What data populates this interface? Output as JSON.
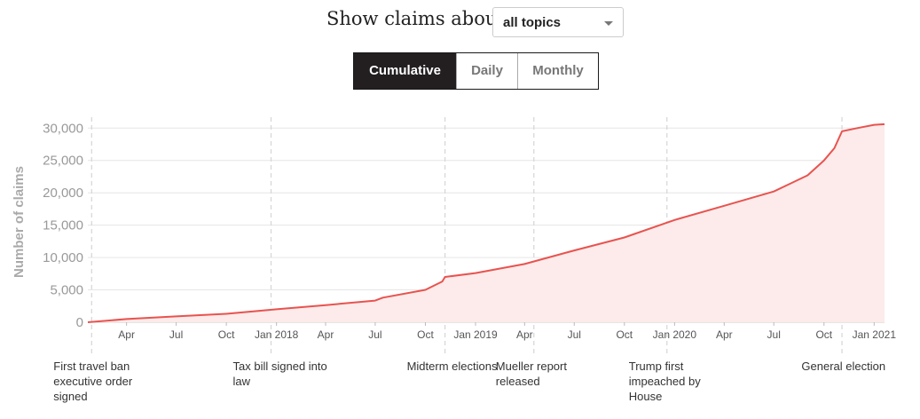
{
  "controls": {
    "prompt": "Show claims about",
    "topic_select": {
      "value": "all topics"
    },
    "view_toggle": [
      {
        "label": "Cumulative",
        "active": true
      },
      {
        "label": "Daily",
        "active": false
      },
      {
        "label": "Monthly",
        "active": false
      }
    ]
  },
  "events": [
    {
      "label": "First travel ban executive order signed",
      "date": "2017-01-27"
    },
    {
      "label": "Tax bill signed into law",
      "date": "2017-12-22"
    },
    {
      "label": "Midterm elections",
      "date": "2018-11-06"
    },
    {
      "label": "Mueller report released",
      "date": "2019-04-18"
    },
    {
      "label": "Trump first impeached by House",
      "date": "2019-12-18"
    },
    {
      "label": "General election",
      "date": "2020-11-03"
    }
  ],
  "chart_data": {
    "type": "area",
    "xlabel": "",
    "ylabel": "Number of claims",
    "x_range": [
      "2017-01-20",
      "2021-01-20"
    ],
    "ylim": [
      0,
      31000
    ],
    "y_ticks": [
      0,
      5000,
      10000,
      15000,
      20000,
      25000,
      30000
    ],
    "y_tick_labels": [
      "0",
      "5,000",
      "10,000",
      "15,000",
      "20,000",
      "25,000",
      "30,000"
    ],
    "x_ticks": [
      {
        "date": "2017-04-01",
        "label": "Apr"
      },
      {
        "date": "2017-07-01",
        "label": "Jul"
      },
      {
        "date": "2017-10-01",
        "label": "Oct"
      },
      {
        "date": "2018-01-01",
        "label": "Jan 2018"
      },
      {
        "date": "2018-04-01",
        "label": "Apr"
      },
      {
        "date": "2018-07-01",
        "label": "Jul"
      },
      {
        "date": "2018-10-01",
        "label": "Oct"
      },
      {
        "date": "2019-01-01",
        "label": "Jan 2019"
      },
      {
        "date": "2019-04-01",
        "label": "Apr"
      },
      {
        "date": "2019-07-01",
        "label": "Jul"
      },
      {
        "date": "2019-10-01",
        "label": "Oct"
      },
      {
        "date": "2020-01-01",
        "label": "Jan 2020"
      },
      {
        "date": "2020-04-01",
        "label": "Apr"
      },
      {
        "date": "2020-07-01",
        "label": "Jul"
      },
      {
        "date": "2020-10-01",
        "label": "Oct"
      },
      {
        "date": "2021-01-01",
        "label": "Jan 2021"
      }
    ],
    "series": [
      {
        "color": "#e8534f",
        "fill": "#fcebea",
        "points": [
          [
            "2017-01-20",
            0
          ],
          [
            "2017-04-01",
            500
          ],
          [
            "2017-07-01",
            900
          ],
          [
            "2017-10-01",
            1300
          ],
          [
            "2018-01-01",
            2000
          ],
          [
            "2018-04-01",
            2650
          ],
          [
            "2018-07-01",
            3350
          ],
          [
            "2018-07-15",
            3800
          ],
          [
            "2018-10-01",
            5000
          ],
          [
            "2018-11-01",
            6300
          ],
          [
            "2018-11-06",
            7000
          ],
          [
            "2019-01-01",
            7600
          ],
          [
            "2019-04-01",
            9000
          ],
          [
            "2019-07-01",
            11100
          ],
          [
            "2019-10-01",
            13100
          ],
          [
            "2020-01-01",
            15800
          ],
          [
            "2020-04-01",
            18000
          ],
          [
            "2020-07-01",
            20200
          ],
          [
            "2020-09-01",
            22700
          ],
          [
            "2020-10-01",
            25000
          ],
          [
            "2020-10-20",
            26900
          ],
          [
            "2020-11-03",
            29500
          ],
          [
            "2020-12-01",
            30000
          ],
          [
            "2021-01-01",
            30500
          ],
          [
            "2021-01-20",
            30600
          ]
        ]
      }
    ],
    "grid": true
  }
}
